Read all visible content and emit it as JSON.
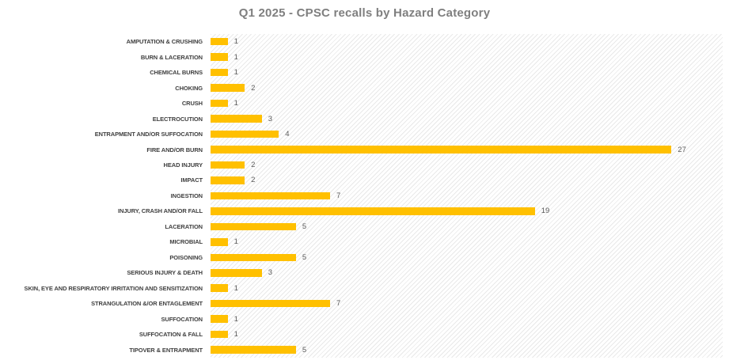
{
  "title": "Q1 2025 - CPSC recalls by Hazard Category",
  "chart_data": {
    "type": "bar",
    "orientation": "horizontal",
    "title": "Q1 2025 - CPSC recalls by Hazard Category",
    "categories": [
      "AMPUTATION & CRUSHING",
      "BURN & LACERATION",
      "CHEMICAL BURNS",
      "CHOKING",
      "CRUSH",
      "ELECTROCUTION",
      "ENTRAPMENT AND/OR SUFFOCATION",
      "FIRE AND/OR BURN",
      "HEAD INJURY",
      "IMPACT",
      "INGESTION",
      "INJURY, CRASH AND/OR FALL",
      "LACERATION",
      "MICROBIAL",
      "POISONING",
      "SERIOUS INJURY & DEATH",
      "SKIN, EYE AND RESPIRATORY IRRITATION AND SENSITIZATION",
      "STRANGULATION &/OR ENTAGLEMENT",
      "SUFFOCATION",
      "SUFFOCATION & FALL",
      "TIPOVER & ENTRAPMENT"
    ],
    "values": [
      1,
      1,
      1,
      2,
      1,
      3,
      4,
      27,
      2,
      2,
      7,
      19,
      5,
      1,
      5,
      3,
      1,
      7,
      1,
      1,
      5
    ],
    "xlabel": "",
    "ylabel": "",
    "xlim": [
      0,
      30
    ],
    "grid": false,
    "legend": false,
    "data_labels": true,
    "bar_color": "#FFC000",
    "title_color": "#7F7F7F",
    "category_label_color": "#404040",
    "value_label_color": "#595959",
    "plot_background_pattern": "light-diagonal-hatch",
    "hatch_color": "#E9E9E9"
  }
}
